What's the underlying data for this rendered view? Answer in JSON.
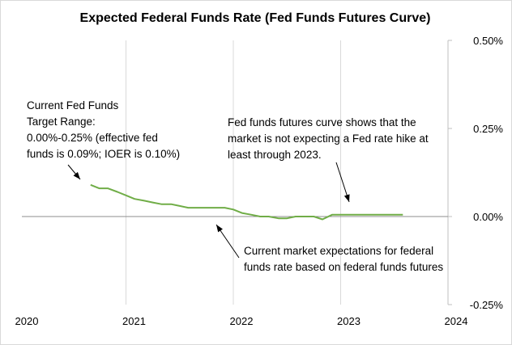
{
  "chart_data": {
    "type": "line",
    "title": "Expected Federal Funds Rate (Fed Funds Futures Curve)",
    "xlabel": "",
    "ylabel": "",
    "x_ticks": [
      "2020",
      "2021",
      "2022",
      "2023",
      "2024"
    ],
    "y_ticks": [
      "0.50%",
      "0.25%",
      "0.00%",
      "-0.25%"
    ],
    "xlim": [
      2020.0,
      2024.0
    ],
    "ylim": [
      -0.25,
      0.5
    ],
    "y_axis_position": "right",
    "grid": "vertical",
    "line_color": "#70ad47",
    "series": [
      {
        "x": [
          2020.67,
          2020.75,
          2020.83,
          2020.92,
          2021.0,
          2021.08,
          2021.17,
          2021.25,
          2021.33,
          2021.42,
          2021.5,
          2021.58,
          2021.67,
          2021.75,
          2021.83,
          2021.92,
          2022.0,
          2022.08,
          2022.17,
          2022.25,
          2022.33,
          2022.42,
          2022.5,
          2022.58,
          2022.67,
          2022.75,
          2022.83,
          2022.92,
          2023.0,
          2023.08,
          2023.17,
          2023.25,
          2023.33,
          2023.42,
          2023.5,
          2023.58
        ],
        "values": [
          0.09,
          0.08,
          0.08,
          0.07,
          0.06,
          0.05,
          0.045,
          0.04,
          0.035,
          0.035,
          0.03,
          0.025,
          0.025,
          0.025,
          0.025,
          0.025,
          0.02,
          0.01,
          0.005,
          0.0,
          0.0,
          -0.005,
          -0.005,
          0.0,
          0.0,
          0.0,
          -0.008,
          0.005,
          0.005,
          0.005,
          0.005,
          0.005,
          0.005,
          0.005,
          0.005,
          0.005
        ]
      }
    ],
    "annotations": [
      {
        "lines": [
          "Current Fed Funds",
          "Target Range:",
          "0.00%-0.25% (effective fed",
          "funds is 0.09%; IOER is 0.10%)"
        ]
      },
      {
        "lines": [
          "Fed funds futures curve shows that the",
          "market is not expecting a Fed rate hike at",
          "least through 2023."
        ]
      },
      {
        "lines": [
          "Current market expectations for federal",
          "funds rate based on federal funds futures"
        ]
      }
    ]
  }
}
